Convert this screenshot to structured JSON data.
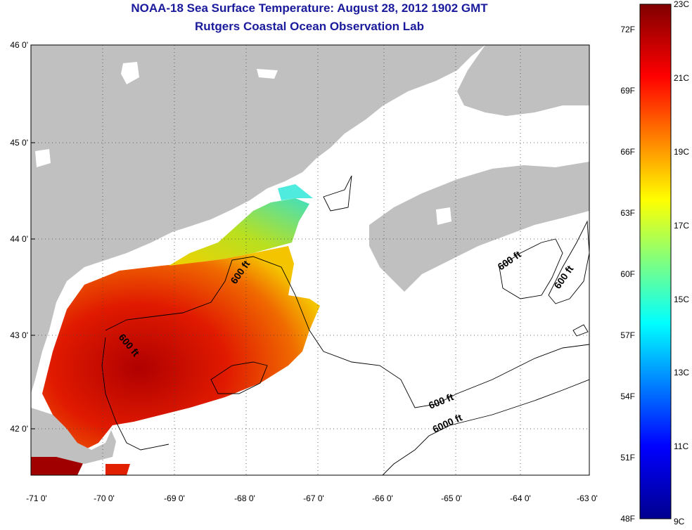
{
  "title": "NOAA-18 Sea Surface Temperature:  August 28, 2012 1902 GMT",
  "subtitle": "Rutgers Coastal Ocean Observation Lab",
  "map": {
    "lon_ticks": [
      "-71 0'",
      "-70 0'",
      "-69 0'",
      "-68 0'",
      "-67 0'",
      "-66 0'",
      "-65 0'",
      "-64 0'",
      "-63 0'"
    ],
    "lat_ticks": [
      "46 0'",
      "45 0'",
      "44 0'",
      "43 0'",
      "42 0'"
    ],
    "contour_labels": [
      "600 ft",
      "600 ft",
      "600 ft",
      "600 ft",
      "600 ft",
      "6000 ft"
    ],
    "land_color": "#c0c0c0",
    "grid": true
  },
  "colorbar": {
    "fahrenheit_ticks": [
      "72F",
      "69F",
      "66F",
      "63F",
      "60F",
      "57F",
      "54F",
      "51F",
      "48F"
    ],
    "celsius_ticks": [
      "23C",
      "21C",
      "19C",
      "17C",
      "15C",
      "13C",
      "11C",
      "9C"
    ],
    "range_c": [
      9,
      23
    ],
    "colormap": [
      "#00008f",
      "#0000ff",
      "#00ffff",
      "#ffff00",
      "#ff0000",
      "#800000"
    ]
  }
}
